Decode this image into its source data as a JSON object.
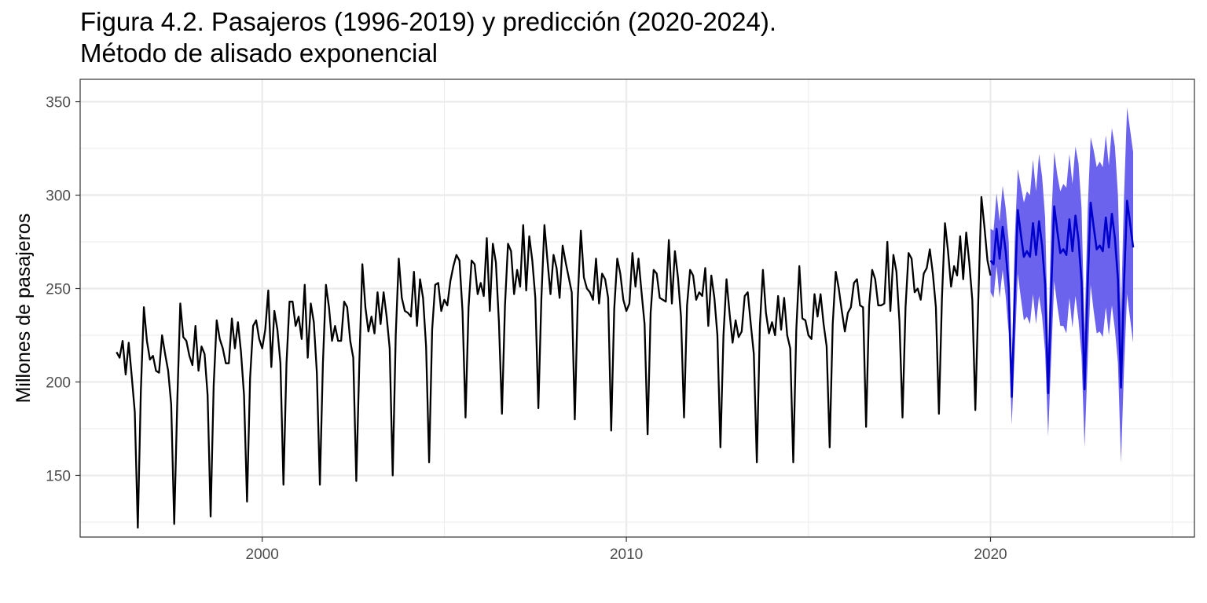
{
  "chart_data": {
    "type": "line",
    "title_line1": "Figura 4.2. Pasajeros (1996-2019) y predicción (2020-2024).",
    "title_line2": "Método de alisado exponencial",
    "xlabel": "",
    "ylabel": "Millones de pasajeros",
    "xlim": [
      1995.0,
      2025.6
    ],
    "ylim": [
      117,
      362
    ],
    "x_ticks": [
      2000,
      2010,
      2020
    ],
    "y_ticks": [
      150,
      200,
      250,
      300,
      350
    ],
    "grid": true,
    "legend": "none",
    "colors": {
      "historical": "#000000",
      "forecast": "#0000CC",
      "interval": "#6B63EE",
      "grid": "#EBEBEB",
      "panel_border": "#333333"
    },
    "series": [
      {
        "role": "historical",
        "start": 1996,
        "frequency": "monthly",
        "values": [
          [
            216,
            213,
            222,
            204,
            221,
            203,
            184,
            122,
            195,
            240,
            222,
            212,
            214,
            206,
            205,
            225,
            215,
            206,
            188,
            124,
            189,
            242,
            224,
            222,
            214,
            209,
            230,
            206,
            219,
            215,
            193,
            128,
            198,
            233,
            223,
            218,
            210,
            210,
            234,
            218,
            232,
            216,
            193,
            136,
            202,
            230,
            233,
            223,
            218,
            228,
            249,
            208,
            238,
            228,
            210,
            145,
            210,
            243,
            243,
            230,
            235,
            223,
            252,
            213,
            242,
            232,
            205,
            145,
            210,
            252,
            240,
            222,
            230,
            222,
            222,
            243,
            240,
            222,
            213,
            147,
            210,
            263,
            240,
            227,
            235,
            226,
            248,
            231,
            248,
            235,
            218,
            150,
            225,
            266,
            245,
            238,
            237,
            235,
            259,
            230,
            255,
            245,
            219,
            157,
            228,
            252,
            253,
            238,
            244,
            241,
            254,
            262,
            268,
            265,
            238,
            181,
            240,
            265,
            263,
            247,
            253,
            246,
            277,
            238,
            274,
            264,
            232,
            183,
            241,
            274,
            270,
            247,
            260,
            251,
            284,
            249,
            278,
            265,
            245,
            186,
            245,
            284,
            265,
            247,
            268,
            261,
            245,
            273,
            264,
            256,
            248,
            180,
            245,
            281,
            256,
            250,
            248,
            244,
            266,
            242,
            258,
            255,
            245,
            174,
            239,
            266,
            258,
            244,
            238,
            242,
            269,
            251,
            266,
            248,
            231,
            172,
            237,
            260,
            258,
            245,
            244,
            243,
            276,
            242,
            270,
            256,
            235,
            181,
            241,
            260,
            257,
            244,
            248,
            246,
            261,
            230,
            257,
            245,
            225,
            165,
            225,
            255,
            237,
            221,
            233,
            224,
            227,
            246,
            248,
            231,
            215,
            157,
            230,
            260,
            237,
            226,
            232,
            225,
            246,
            228,
            245,
            225,
            218,
            157,
            228,
            262,
            234,
            233,
            225,
            223,
            247,
            235,
            247,
            231,
            219,
            165,
            231,
            259,
            250,
            238,
            227,
            237,
            240,
            253,
            255,
            241,
            240,
            176,
            241,
            260,
            255,
            241,
            241,
            242,
            275,
            238,
            268,
            259,
            232,
            181,
            240,
            269,
            266,
            248,
            250,
            244,
            258,
            261,
            271,
            258,
            240,
            183,
            245,
            285,
            270,
            251,
            262,
            257,
            278,
            255,
            280,
            264,
            244,
            185,
            245,
            299,
            283,
            265,
            257
          ]
        ]
      },
      {
        "role": "forecast",
        "start": 2020,
        "frequency": "monthly",
        "values": [
          265,
          263,
          282,
          266,
          283,
          270,
          251,
          192,
          247,
          292,
          279,
          267,
          270,
          267,
          285,
          268,
          286,
          273,
          252,
          194,
          249,
          294,
          281,
          269,
          271,
          268,
          287,
          270,
          289,
          276,
          254,
          196,
          251,
          296,
          283,
          271,
          273,
          270,
          288,
          272,
          290,
          277,
          255,
          197,
          253,
          297,
          285,
          272
        ],
        "lower": [
          248,
          245,
          262,
          245,
          260,
          246,
          226,
          177,
          217,
          258,
          245,
          233,
          235,
          231,
          247,
          231,
          246,
          235,
          216,
          171,
          213,
          254,
          241,
          230,
          230,
          226,
          245,
          229,
          246,
          233,
          214,
          165,
          210,
          252,
          238,
          226,
          227,
          224,
          240,
          225,
          241,
          228,
          210,
          157,
          207,
          247,
          234,
          221
        ],
        "upper": [
          282,
          281,
          301,
          286,
          305,
          293,
          275,
          207,
          277,
          314,
          305,
          296,
          302,
          300,
          319,
          302,
          322,
          310,
          288,
          218,
          285,
          323,
          311,
          302,
          306,
          304,
          322,
          306,
          326,
          317,
          293,
          226,
          291,
          331,
          324,
          315,
          318,
          315,
          332,
          316,
          336,
          326,
          300,
          237,
          299,
          347,
          335,
          323
        ]
      }
    ]
  }
}
